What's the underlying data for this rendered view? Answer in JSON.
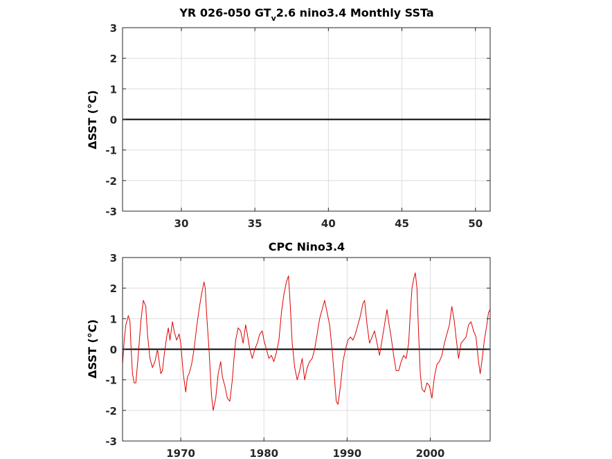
{
  "chart_data": [
    {
      "type": "line",
      "title": {
        "pre": "YR 026-050 GT",
        "sub": "v",
        "post": "2.6 nino3.4 Monthly SSTa"
      },
      "ylabel": "ΔSST (°C)",
      "xlim": [
        26,
        51
      ],
      "ylim": [
        -3,
        3
      ],
      "xticks": [
        30,
        35,
        40,
        45,
        50
      ],
      "yticks": [
        -3,
        -2,
        -1,
        0,
        1,
        2,
        3
      ],
      "grid": true,
      "zero_line": {
        "y": 0,
        "color": "#000000"
      },
      "series": []
    },
    {
      "type": "line",
      "title": {
        "pre": "CPC Nino3.4",
        "sub": "",
        "post": ""
      },
      "ylabel": "ΔSST (°C)",
      "xlim": [
        1963,
        2007.2
      ],
      "ylim": [
        -3,
        3
      ],
      "xticks": [
        1970,
        1980,
        1990,
        2000
      ],
      "yticks": [
        -3,
        -2,
        -1,
        0,
        1,
        2,
        3
      ],
      "grid": true,
      "zero_line": {
        "y": 0,
        "color": "#000000"
      },
      "series": [
        {
          "color": "#dd0000",
          "x": [
            1963.0,
            1963.2,
            1963.4,
            1963.7,
            1963.9,
            1964.0,
            1964.2,
            1964.4,
            1964.6,
            1964.8,
            1965.0,
            1965.2,
            1965.5,
            1965.8,
            1966.0,
            1966.3,
            1966.6,
            1966.9,
            1967.2,
            1967.4,
            1967.6,
            1967.8,
            1968.0,
            1968.3,
            1968.5,
            1968.7,
            1969.0,
            1969.2,
            1969.5,
            1969.8,
            1970.0,
            1970.3,
            1970.6,
            1970.8,
            1971.0,
            1971.3,
            1971.6,
            1971.9,
            1972.2,
            1972.5,
            1972.8,
            1972.95,
            1973.1,
            1973.4,
            1973.7,
            1973.9,
            1974.2,
            1974.5,
            1974.8,
            1975.0,
            1975.3,
            1975.6,
            1975.9,
            1976.2,
            1976.4,
            1976.6,
            1976.9,
            1977.2,
            1977.5,
            1977.8,
            1978.0,
            1978.3,
            1978.6,
            1978.9,
            1979.2,
            1979.5,
            1979.8,
            1980.0,
            1980.3,
            1980.6,
            1980.9,
            1981.2,
            1981.5,
            1981.8,
            1982.1,
            1982.4,
            1982.7,
            1982.95,
            1983.15,
            1983.4,
            1983.7,
            1984.0,
            1984.3,
            1984.6,
            1984.9,
            1985.2,
            1985.5,
            1985.8,
            1986.1,
            1986.4,
            1986.7,
            1987.0,
            1987.3,
            1987.6,
            1987.9,
            1988.2,
            1988.5,
            1988.7,
            1988.9,
            1989.2,
            1989.5,
            1989.8,
            1990.1,
            1990.4,
            1990.7,
            1991.0,
            1991.3,
            1991.6,
            1991.9,
            1992.1,
            1992.4,
            1992.7,
            1993.0,
            1993.3,
            1993.6,
            1993.9,
            1994.2,
            1994.5,
            1994.8,
            1995.0,
            1995.3,
            1995.6,
            1995.9,
            1996.2,
            1996.5,
            1996.8,
            1997.1,
            1997.4,
            1997.6,
            1997.8,
            1998.0,
            1998.2,
            1998.4,
            1998.6,
            1998.8,
            1999.0,
            1999.3,
            1999.6,
            1999.9,
            2000.2,
            2000.5,
            2000.8,
            2001.1,
            2001.4,
            2001.7,
            2002.0,
            2002.3,
            2002.6,
            2002.9,
            2003.1,
            2003.4,
            2003.7,
            2004.0,
            2004.3,
            2004.6,
            2004.9,
            2005.2,
            2005.5,
            2005.8,
            2006.0,
            2006.2,
            2006.5,
            2006.8,
            2007.0,
            2007.2
          ],
          "y": [
            -0.5,
            0.3,
            0.8,
            1.1,
            0.9,
            0.2,
            -0.8,
            -1.1,
            -1.1,
            -0.5,
            0.2,
            0.9,
            1.6,
            1.4,
            0.5,
            -0.3,
            -0.6,
            -0.4,
            0.0,
            -0.4,
            -0.8,
            -0.7,
            -0.2,
            0.4,
            0.7,
            0.3,
            0.9,
            0.6,
            0.3,
            0.5,
            0.2,
            -0.8,
            -1.4,
            -0.9,
            -0.8,
            -0.5,
            0.0,
            0.7,
            1.3,
            1.8,
            2.2,
            2.0,
            1.2,
            0.0,
            -1.5,
            -2.0,
            -1.6,
            -0.8,
            -0.4,
            -0.9,
            -1.2,
            -1.6,
            -1.7,
            -1.0,
            -0.3,
            0.3,
            0.7,
            0.6,
            0.2,
            0.8,
            0.5,
            0.0,
            -0.3,
            0.0,
            0.2,
            0.5,
            0.6,
            0.3,
            0.0,
            -0.3,
            -0.2,
            -0.4,
            -0.1,
            0.3,
            1.2,
            1.8,
            2.2,
            2.4,
            1.5,
            0.2,
            -0.6,
            -1.0,
            -0.7,
            -0.3,
            -1.0,
            -0.6,
            -0.4,
            -0.3,
            0.0,
            0.5,
            1.0,
            1.3,
            1.6,
            1.2,
            0.8,
            0.0,
            -1.0,
            -1.7,
            -1.8,
            -1.2,
            -0.4,
            0.0,
            0.3,
            0.4,
            0.3,
            0.5,
            0.8,
            1.1,
            1.5,
            1.6,
            0.8,
            0.2,
            0.4,
            0.6,
            0.2,
            -0.2,
            0.3,
            0.8,
            1.3,
            0.9,
            0.4,
            -0.2,
            -0.7,
            -0.7,
            -0.4,
            -0.2,
            -0.3,
            0.2,
            1.2,
            2.0,
            2.3,
            2.5,
            2.0,
            0.5,
            -0.8,
            -1.3,
            -1.4,
            -1.1,
            -1.2,
            -1.6,
            -0.9,
            -0.5,
            -0.4,
            -0.2,
            0.2,
            0.5,
            0.8,
            1.4,
            0.9,
            0.4,
            -0.3,
            0.2,
            0.3,
            0.4,
            0.8,
            0.9,
            0.6,
            0.4,
            -0.4,
            -0.8,
            -0.4,
            0.3,
            0.8,
            1.2,
            1.3
          ]
        }
      ]
    }
  ]
}
